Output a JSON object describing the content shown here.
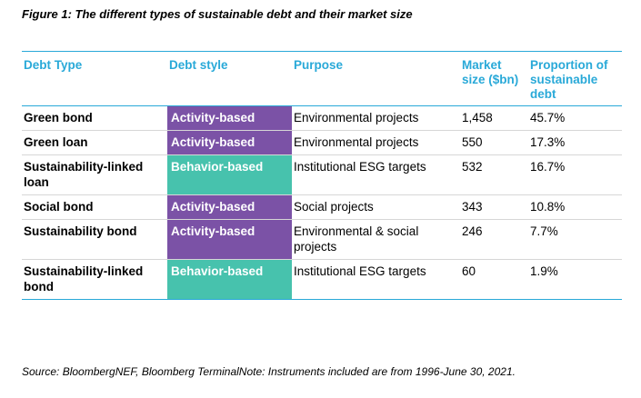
{
  "figure": {
    "caption": "Figure 1: The different types of sustainable debt and their market size"
  },
  "colors": {
    "accent": "#29a9d8",
    "activity": "#7b52a6",
    "behavior": "#47c2ad"
  },
  "table": {
    "headers": [
      "Debt Type",
      "Debt style",
      "Purpose",
      "Market size ($bn)",
      "Proportion of sustainable debt"
    ],
    "rows": [
      {
        "type": "Green bond",
        "style": "Activity-based",
        "purpose": "Environmental projects",
        "size": "1,458",
        "share": "45.7%"
      },
      {
        "type": "Green loan",
        "style": "Activity-based",
        "purpose": "Environmental projects",
        "size": "550",
        "share": "17.3%"
      },
      {
        "type": "Sustainability-linked loan",
        "style": "Behavior-based",
        "purpose": "Institutional ESG targets",
        "size": "532",
        "share": "16.7%"
      },
      {
        "type": "Social bond",
        "style": "Activity-based",
        "purpose": "Social projects",
        "size": "343",
        "share": "10.8%"
      },
      {
        "type": "Sustainability bond",
        "style": "Activity-based",
        "purpose": "Environmental & social projects",
        "size": "246",
        "share": "7.7%"
      },
      {
        "type": "Sustainability-linked bond",
        "style": "Behavior-based",
        "purpose": "Institutional ESG targets",
        "size": "60",
        "share": "1.9%"
      }
    ]
  },
  "source": "Source: BloombergNEF, Bloomberg TerminalNote: Instruments included are from 1996-June 30, 2021."
}
